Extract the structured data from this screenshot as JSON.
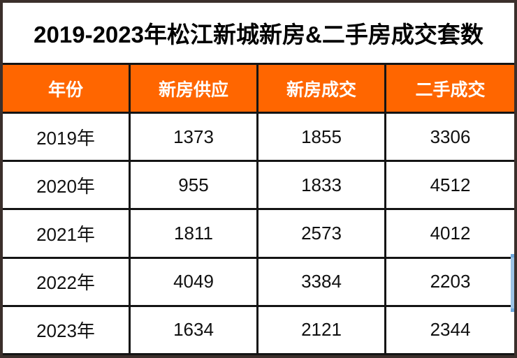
{
  "title": "2019-2023年松江新城新房&二手房成交套数",
  "table": {
    "columns": [
      "年份",
      "新房供应",
      "新房成交",
      "二手成交"
    ],
    "rows": [
      [
        "2019年",
        "1373",
        "1855",
        "3306"
      ],
      [
        "2020年",
        "955",
        "1833",
        "4512"
      ],
      [
        "2021年",
        "1811",
        "2573",
        "4012"
      ],
      [
        "2022年",
        "4049",
        "3384",
        "2203"
      ],
      [
        "2023年",
        "1634",
        "2121",
        "2344"
      ]
    ]
  },
  "chart_data": {
    "type": "table",
    "title": "2019-2023年松江新城新房&二手房成交套数",
    "categories": [
      "2019年",
      "2020年",
      "2021年",
      "2022年",
      "2023年"
    ],
    "series": [
      {
        "name": "新房供应",
        "values": [
          1373,
          955,
          1811,
          4049,
          1634
        ]
      },
      {
        "name": "新房成交",
        "values": [
          1855,
          1833,
          2573,
          3384,
          2121
        ]
      },
      {
        "name": "二手成交",
        "values": [
          3306,
          4512,
          4012,
          2203,
          2344
        ]
      }
    ]
  },
  "colors": {
    "header_bg": "#FF6600",
    "header_text": "#FFFFFF",
    "title_text": "#000000",
    "border_outer": "#3B2F2B",
    "border_inner": "#141414",
    "selection_highlight": "#9DC3E6",
    "selection_handle": "#6FA8DC"
  }
}
